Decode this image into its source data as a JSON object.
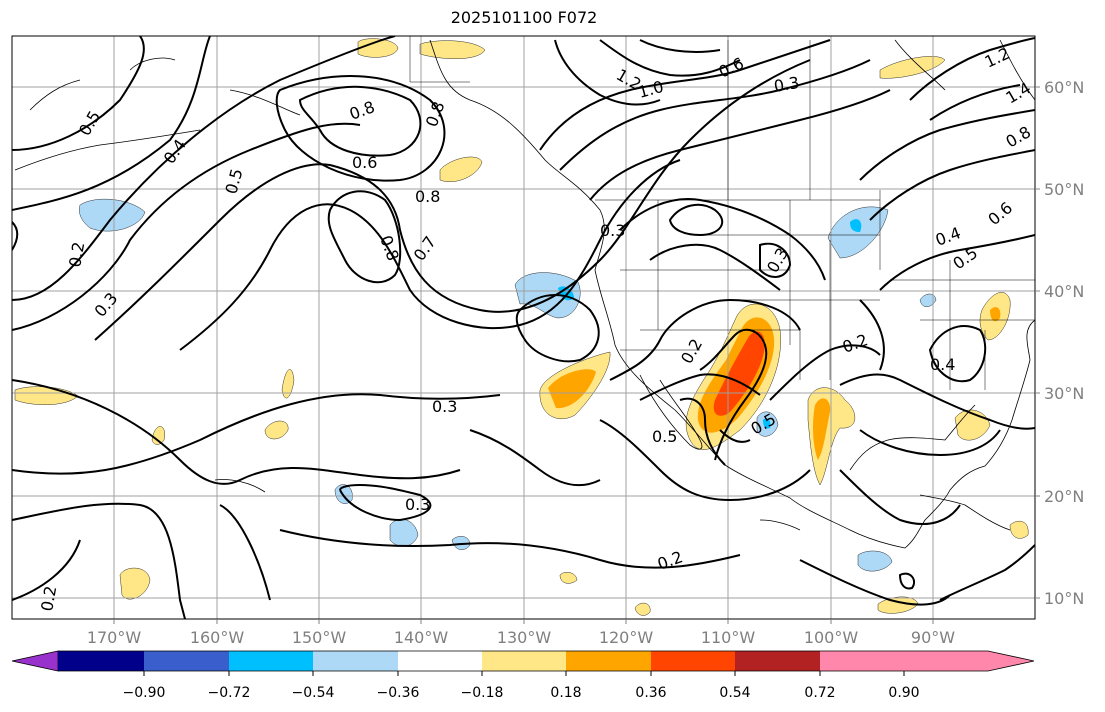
{
  "title": "2025101100 F072",
  "longitude_labels": [
    "170°W",
    "160°W",
    "150°W",
    "140°W",
    "130°W",
    "120°W",
    "110°W",
    "100°W",
    "90°W"
  ],
  "latitude_labels": [
    "60°N",
    "50°N",
    "40°N",
    "30°N",
    "20°N",
    "10°N"
  ],
  "colorbar": {
    "colors": [
      "#9932cc",
      "#00008b",
      "#3a5fcd",
      "#00bfff",
      "#add8f6",
      "#ffffff",
      "#ffe788",
      "#ffa500",
      "#ff4500",
      "#b22222",
      "#ff87ab"
    ],
    "tick_labels": [
      "−0.90",
      "−0.72",
      "−0.54",
      "−0.36",
      "−0.18",
      "0.18",
      "0.36",
      "0.54",
      "0.72",
      "0.90"
    ]
  },
  "contour_labels": [
    "0.5",
    "0.4",
    "0.5",
    "0.2",
    "0.3",
    "0.8",
    "0.6",
    "0.8",
    "0.8",
    "0.8",
    "0.7",
    "0.3",
    "0.3",
    "0.3",
    "0.2",
    "0.2",
    "0.5",
    "0.2",
    "0.2",
    "0.4",
    "0.5",
    "0.4",
    "0.3",
    "1.0",
    "1.2",
    "0.6",
    "0.3",
    "1.2",
    "1.4",
    "0.8",
    "0.6",
    "0.5"
  ]
}
